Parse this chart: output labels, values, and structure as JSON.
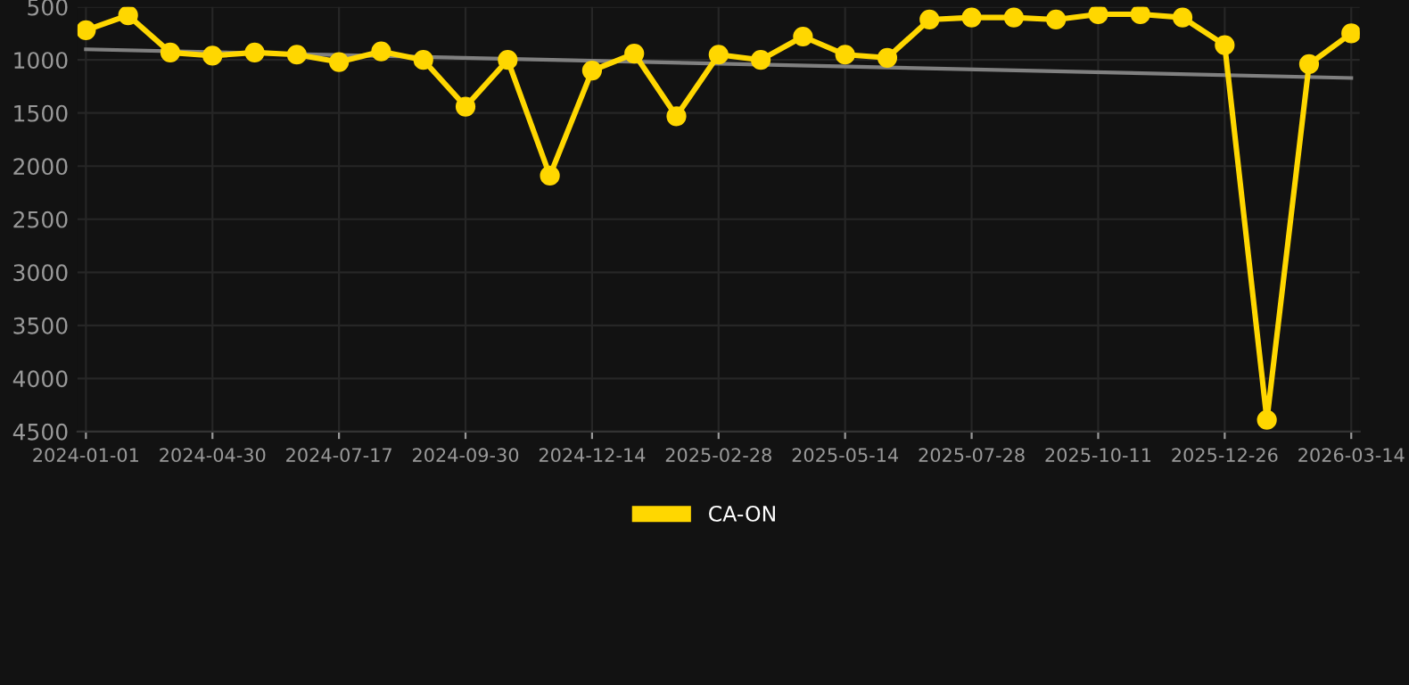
{
  "chart_data": {
    "type": "line",
    "categories": [
      "2024-01-01",
      null,
      null,
      "2024-04-30",
      null,
      null,
      "2024-07-17",
      null,
      null,
      "2024-09-30",
      null,
      null,
      "2024-12-14",
      null,
      null,
      "2025-02-28",
      null,
      null,
      "2025-05-14",
      null,
      null,
      "2025-07-28",
      null,
      null,
      "2025-10-11",
      null,
      null,
      "2025-12-26",
      null,
      null,
      "2026-03-14"
    ],
    "series": [
      {
        "name": "CA-ON",
        "color": "#ffd700",
        "marker": "circle",
        "values": [
          720,
          580,
          930,
          960,
          930,
          950,
          1020,
          920,
          1000,
          1440,
          1000,
          2090,
          1100,
          940,
          1530,
          950,
          1000,
          780,
          950,
          980,
          620,
          600,
          600,
          620,
          570,
          570,
          600,
          860,
          4390,
          1040,
          750
        ]
      },
      {
        "type": "line",
        "color": "#808080",
        "marker": "none",
        "values": [
          900,
          null,
          null,
          null,
          null,
          null,
          null,
          null,
          null,
          null,
          null,
          null,
          null,
          null,
          null,
          null,
          null,
          null,
          null,
          null,
          null,
          null,
          null,
          null,
          null,
          null,
          null,
          null,
          null,
          null,
          1170
        ]
      }
    ],
    "ylim": [
      4500,
      500
    ],
    "yticks": [
      500,
      1000,
      1500,
      2000,
      2500,
      3000,
      3500,
      4000,
      4500
    ],
    "grid": true,
    "legend": "bottom"
  }
}
